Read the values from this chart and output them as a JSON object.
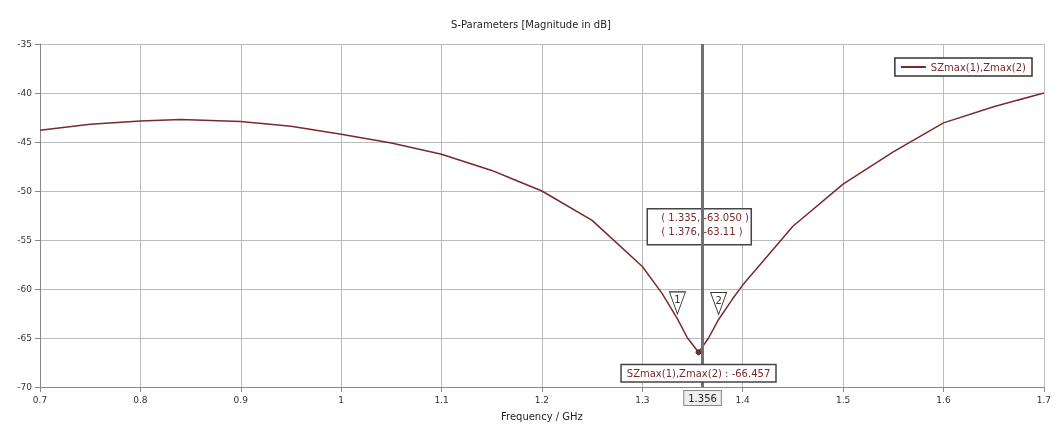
{
  "chart_data": {
    "type": "line",
    "title": "S-Parameters [Magnitude in dB]",
    "xlabel": "Frequency / GHz",
    "series": [
      {
        "name": "SZmax(1),Zmax(2)",
        "color": "#7a2a2a",
        "x": [
          0.7,
          0.75,
          0.8,
          0.84,
          0.9,
          0.95,
          1.0,
          1.05,
          1.1,
          1.15,
          1.2,
          1.25,
          1.3,
          1.32,
          1.335,
          1.345,
          1.356,
          1.366,
          1.376,
          1.39,
          1.4,
          1.42,
          1.45,
          1.5,
          1.55,
          1.6,
          1.65,
          1.7
        ],
        "values": [
          -43.8,
          -43.2,
          -42.85,
          -42.7,
          -42.9,
          -43.4,
          -44.2,
          -45.1,
          -46.25,
          -47.9,
          -50.0,
          -53.0,
          -57.7,
          -60.5,
          -63.05,
          -65.0,
          -66.46,
          -65.0,
          -63.11,
          -61.0,
          -59.6,
          -57.2,
          -53.6,
          -49.3,
          -46.0,
          -43.05,
          -41.4,
          -40.0
        ]
      }
    ],
    "xlim": [
      0.7,
      1.7
    ],
    "xticks": [
      0.7,
      0.8,
      0.9,
      1,
      1.1,
      1.2,
      1.3,
      1.4,
      1.5,
      1.6,
      1.7
    ],
    "ylim": [
      -70,
      -35
    ],
    "yticks": [
      -70,
      -65,
      -60,
      -55,
      -50,
      -45,
      -40,
      -35
    ],
    "grid": true,
    "legend": "top right",
    "marker": "none",
    "line_style": "solid",
    "ref_lines": [
      {
        "axis": "x",
        "value": 1.356,
        "label": "1.356",
        "color": "#707070"
      }
    ],
    "annotations": [
      {
        "text": "1",
        "x": 1.335,
        "y": -63.05
      },
      {
        "text": "2",
        "x": 1.376,
        "y": -63.11
      },
      {
        "text": "SZmax(1),Zmax(2) : -66.457",
        "x": 1.356,
        "y": -66.46
      },
      "( 1.335, -63.050 )",
      "( 1.376, -63.11 )"
    ]
  }
}
